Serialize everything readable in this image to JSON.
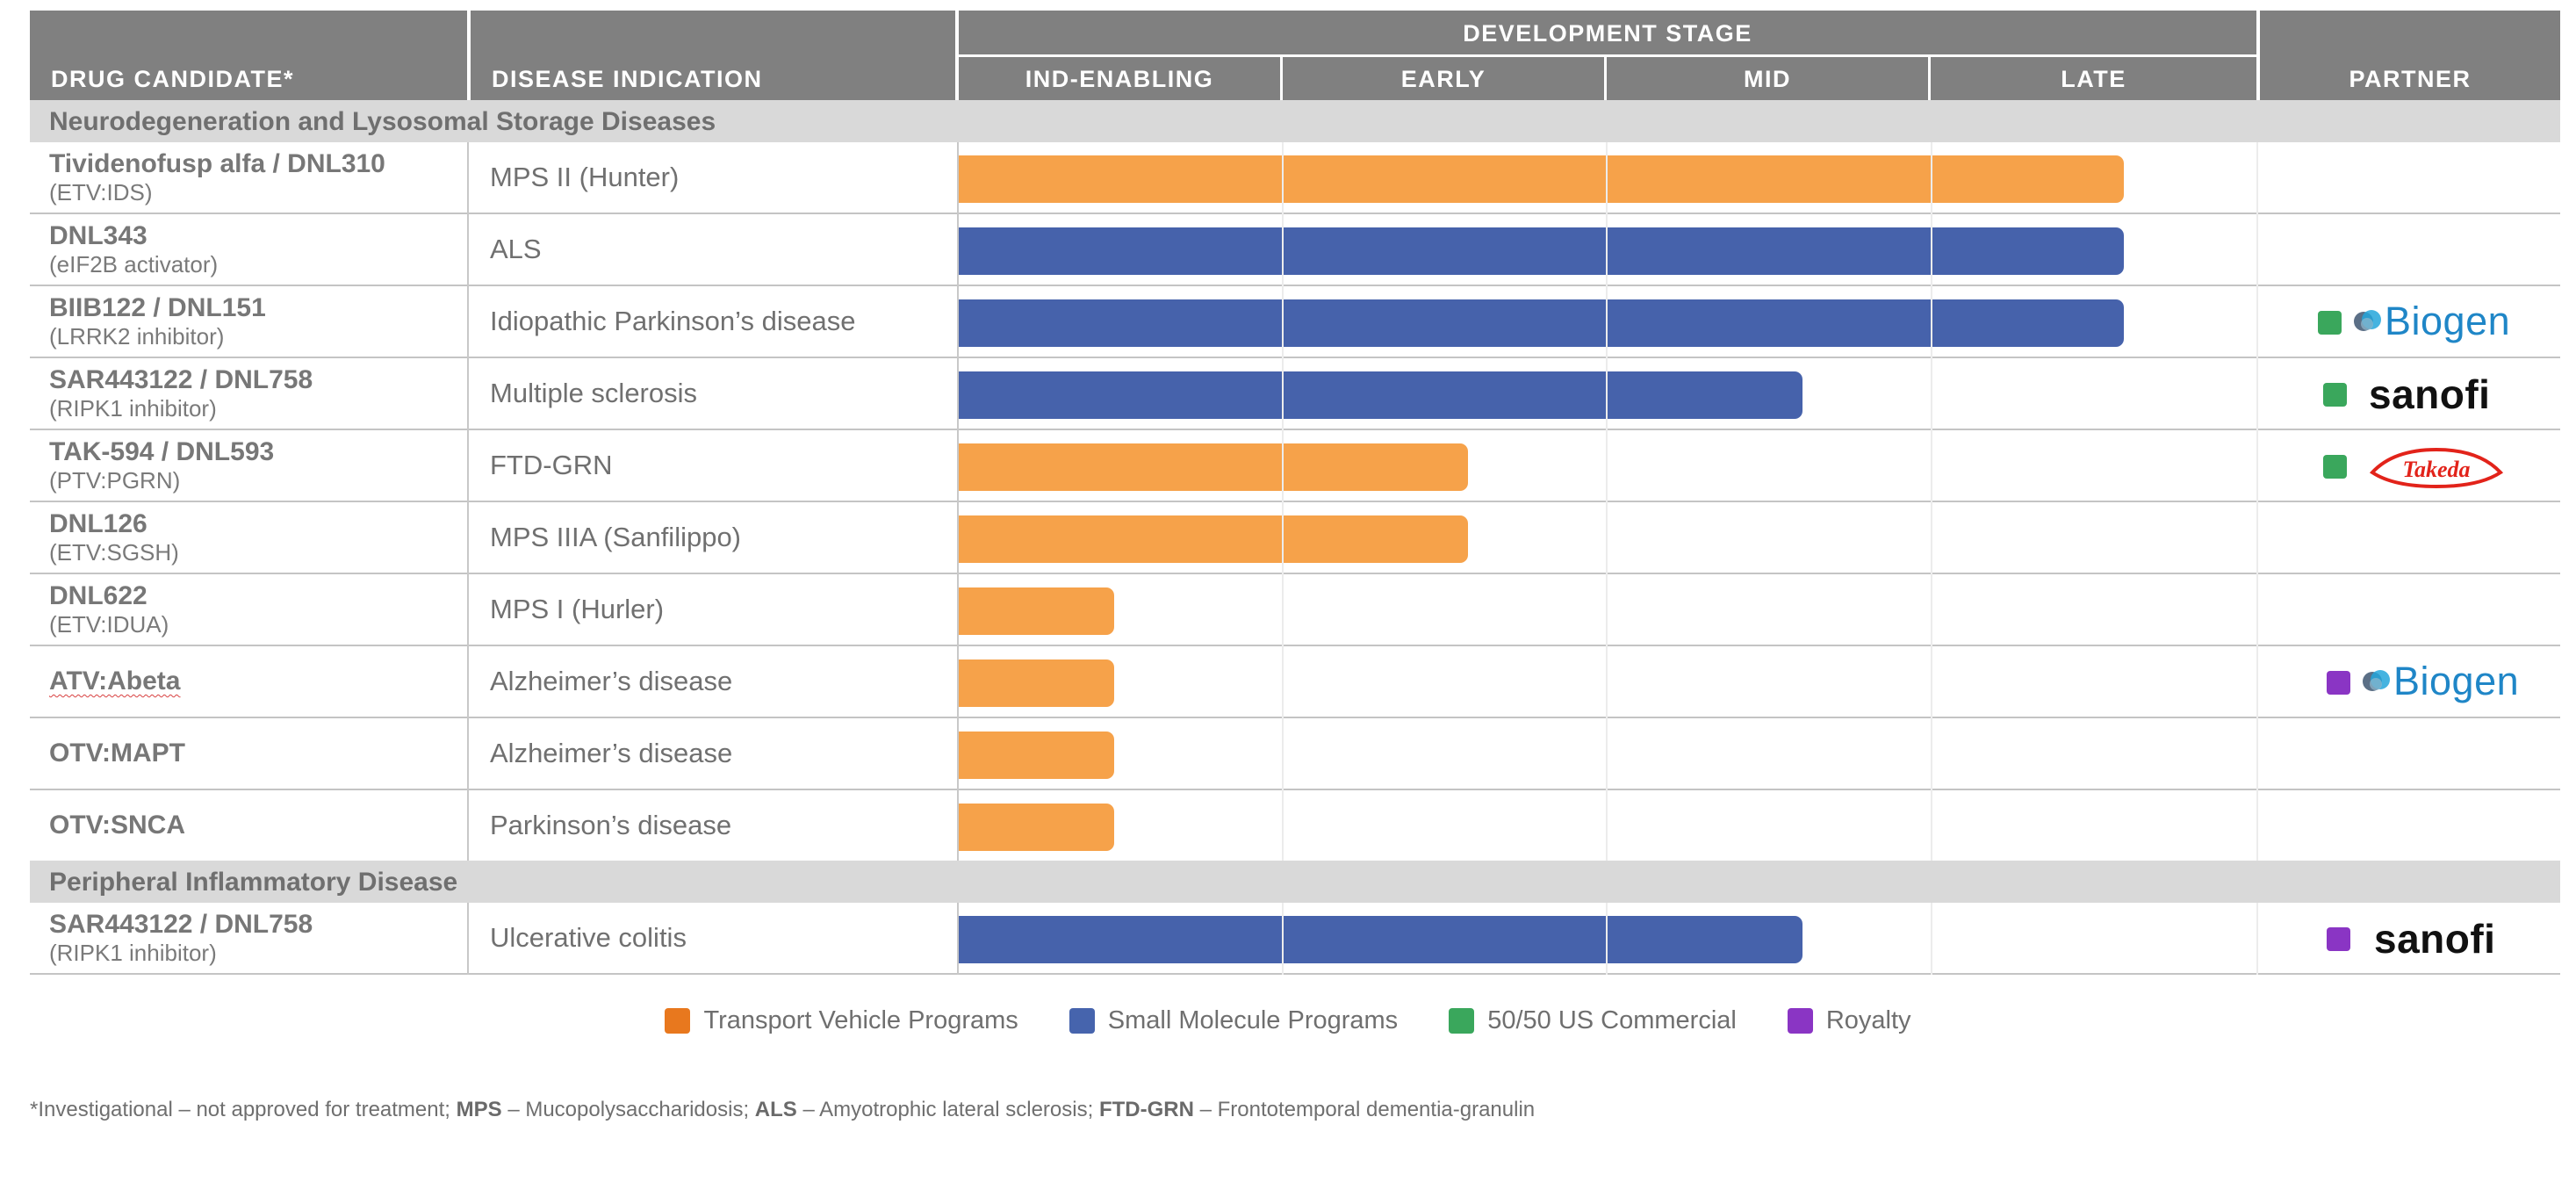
{
  "header": {
    "drug_col": "DRUG CANDIDATE*",
    "indication_col": "DISEASE INDICATION",
    "stage_group": "DEVELOPMENT STAGE",
    "partner_col": "PARTNER",
    "stages": [
      "IND-ENABLING",
      "EARLY",
      "MID",
      "LATE"
    ]
  },
  "sections": [
    {
      "title": "Neurodegeneration and Lysosomal Storage Diseases"
    },
    {
      "title": "Peripheral Inflammatory Disease"
    }
  ],
  "rows": [
    {
      "name": "Tividenofusp alfa / DNL310",
      "sub": "(ETV:IDS)",
      "indication": "MPS II (Hunter)",
      "program": "Transport Vehicle Programs",
      "partner": "",
      "partner_type": ""
    },
    {
      "name": "DNL343",
      "sub": "(eIF2B activator)",
      "indication": "ALS",
      "program": "Small Molecule Programs",
      "partner": "",
      "partner_type": ""
    },
    {
      "name": "BIIB122 / DNL151",
      "sub": "(LRRK2 inhibitor)",
      "indication": "Idiopathic Parkinson’s disease",
      "program": "Small Molecule Programs",
      "partner": "Biogen",
      "partner_type": "50/50 US Commercial"
    },
    {
      "name": "SAR443122 / DNL758",
      "sub": "(RIPK1 inhibitor)",
      "indication": "Multiple sclerosis",
      "program": "Small Molecule Programs",
      "partner": "sanofi",
      "partner_type": "50/50 US Commercial"
    },
    {
      "name": "TAK-594 / DNL593",
      "sub": "(PTV:PGRN)",
      "indication": "FTD-GRN",
      "program": "Transport Vehicle Programs",
      "partner": "Takeda",
      "partner_type": "50/50 US Commercial"
    },
    {
      "name": "DNL126",
      "sub": "(ETV:SGSH)",
      "indication": "MPS IIIA (Sanfilippo)",
      "program": "Transport Vehicle Programs",
      "partner": "",
      "partner_type": ""
    },
    {
      "name": "DNL622",
      "sub": "(ETV:IDUA)",
      "indication": "MPS I (Hurler)",
      "program": "Transport Vehicle Programs",
      "partner": "",
      "partner_type": ""
    },
    {
      "name": "ATV:Abeta",
      "sub": "",
      "indication": "Alzheimer’s disease",
      "program": "Transport Vehicle Programs",
      "partner": "Biogen",
      "partner_type": "Royalty"
    },
    {
      "name": "OTV:MAPT",
      "sub": "",
      "indication": "Alzheimer’s disease",
      "program": "Transport Vehicle Programs",
      "partner": "",
      "partner_type": ""
    },
    {
      "name": "OTV:SNCA",
      "sub": "",
      "indication": "Parkinson’s disease",
      "program": "Transport Vehicle Programs",
      "partner": "",
      "partner_type": ""
    },
    {
      "name": "SAR443122 / DNL758",
      "sub": "(RIPK1 inhibitor)",
      "indication": "Ulcerative colitis",
      "program": "Small Molecule Programs",
      "partner": "sanofi",
      "partner_type": "Royalty"
    }
  ],
  "legend": [
    {
      "label": "Transport Vehicle Programs",
      "color": "#e8781e"
    },
    {
      "label": "Small Molecule Programs",
      "color": "#4664ad"
    },
    {
      "label": "50/50 US Commercial",
      "color": "#3aa75c"
    },
    {
      "label": "Royalty",
      "color": "#8a35c4"
    }
  ],
  "colors": {
    "transport_bar": "#f6a24a",
    "small_molecule_bar": "#4662ab",
    "header_bg": "#808080",
    "section_bg": "#d9d9d9",
    "commercial_square": "#3aa75c",
    "royalty_square": "#8a35c4",
    "biogen_blue": "#1f86c7",
    "takeda_red": "#e2231a"
  },
  "footnote": {
    "lead": "*Investigational – not approved for treatment;",
    "t1": "MPS",
    "d1": " – Mucopolysaccharidosis; ",
    "t2": "ALS",
    "d2": " – Amyotrophic lateral sclerosis; ",
    "t3": "FTD-GRN",
    "d3": " – Frontotemporal dementia-granulin"
  },
  "chart_data": {
    "type": "bar",
    "orientation": "horizontal",
    "title": "",
    "x_axis": {
      "label": "DEVELOPMENT STAGE",
      "categories": [
        "IND-ENABLING",
        "EARLY",
        "MID",
        "LATE"
      ],
      "range": [
        0,
        4
      ]
    },
    "categories": [
      "Tividenofusp alfa / DNL310",
      "DNL343",
      "BIIB122 / DNL151",
      "SAR443122 / DNL758",
      "TAK-594 / DNL593",
      "DNL126",
      "DNL622",
      "ATV:Abeta",
      "OTV:MAPT",
      "OTV:SNCA",
      "SAR443122 / DNL758"
    ],
    "values": [
      3.59,
      3.59,
      3.59,
      2.6,
      1.57,
      1.57,
      0.48,
      0.48,
      0.48,
      0.48,
      2.6
    ],
    "series": [
      {
        "name": "Transport Vehicle Programs",
        "rows": [
          0,
          4,
          5,
          6,
          7,
          8,
          9
        ]
      },
      {
        "name": "Small Molecule Programs",
        "rows": [
          1,
          2,
          3,
          10
        ]
      }
    ],
    "legend_position": "bottom-center",
    "grid": true
  }
}
